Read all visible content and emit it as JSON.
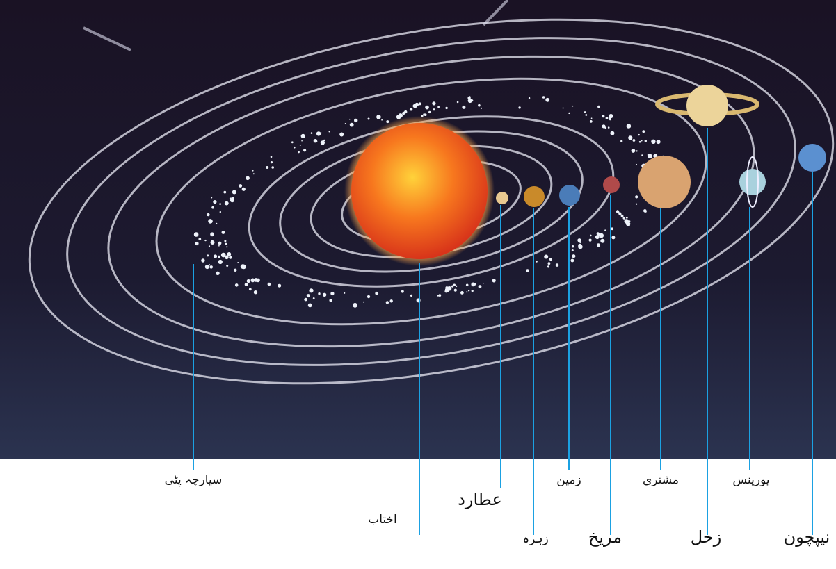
{
  "labels": [
    {
      "text": "سیارچہ پٹی"
    },
    {
      "text": "اختاب"
    },
    {
      "text": "عطارد"
    },
    {
      "text": "زہرہ"
    },
    {
      "text": "زمین"
    },
    {
      "text": "مریخ"
    },
    {
      "text": "مشتری"
    },
    {
      "text": "زحل"
    },
    {
      "text": "یورینس"
    },
    {
      "text": "نیپچون"
    }
  ]
}
